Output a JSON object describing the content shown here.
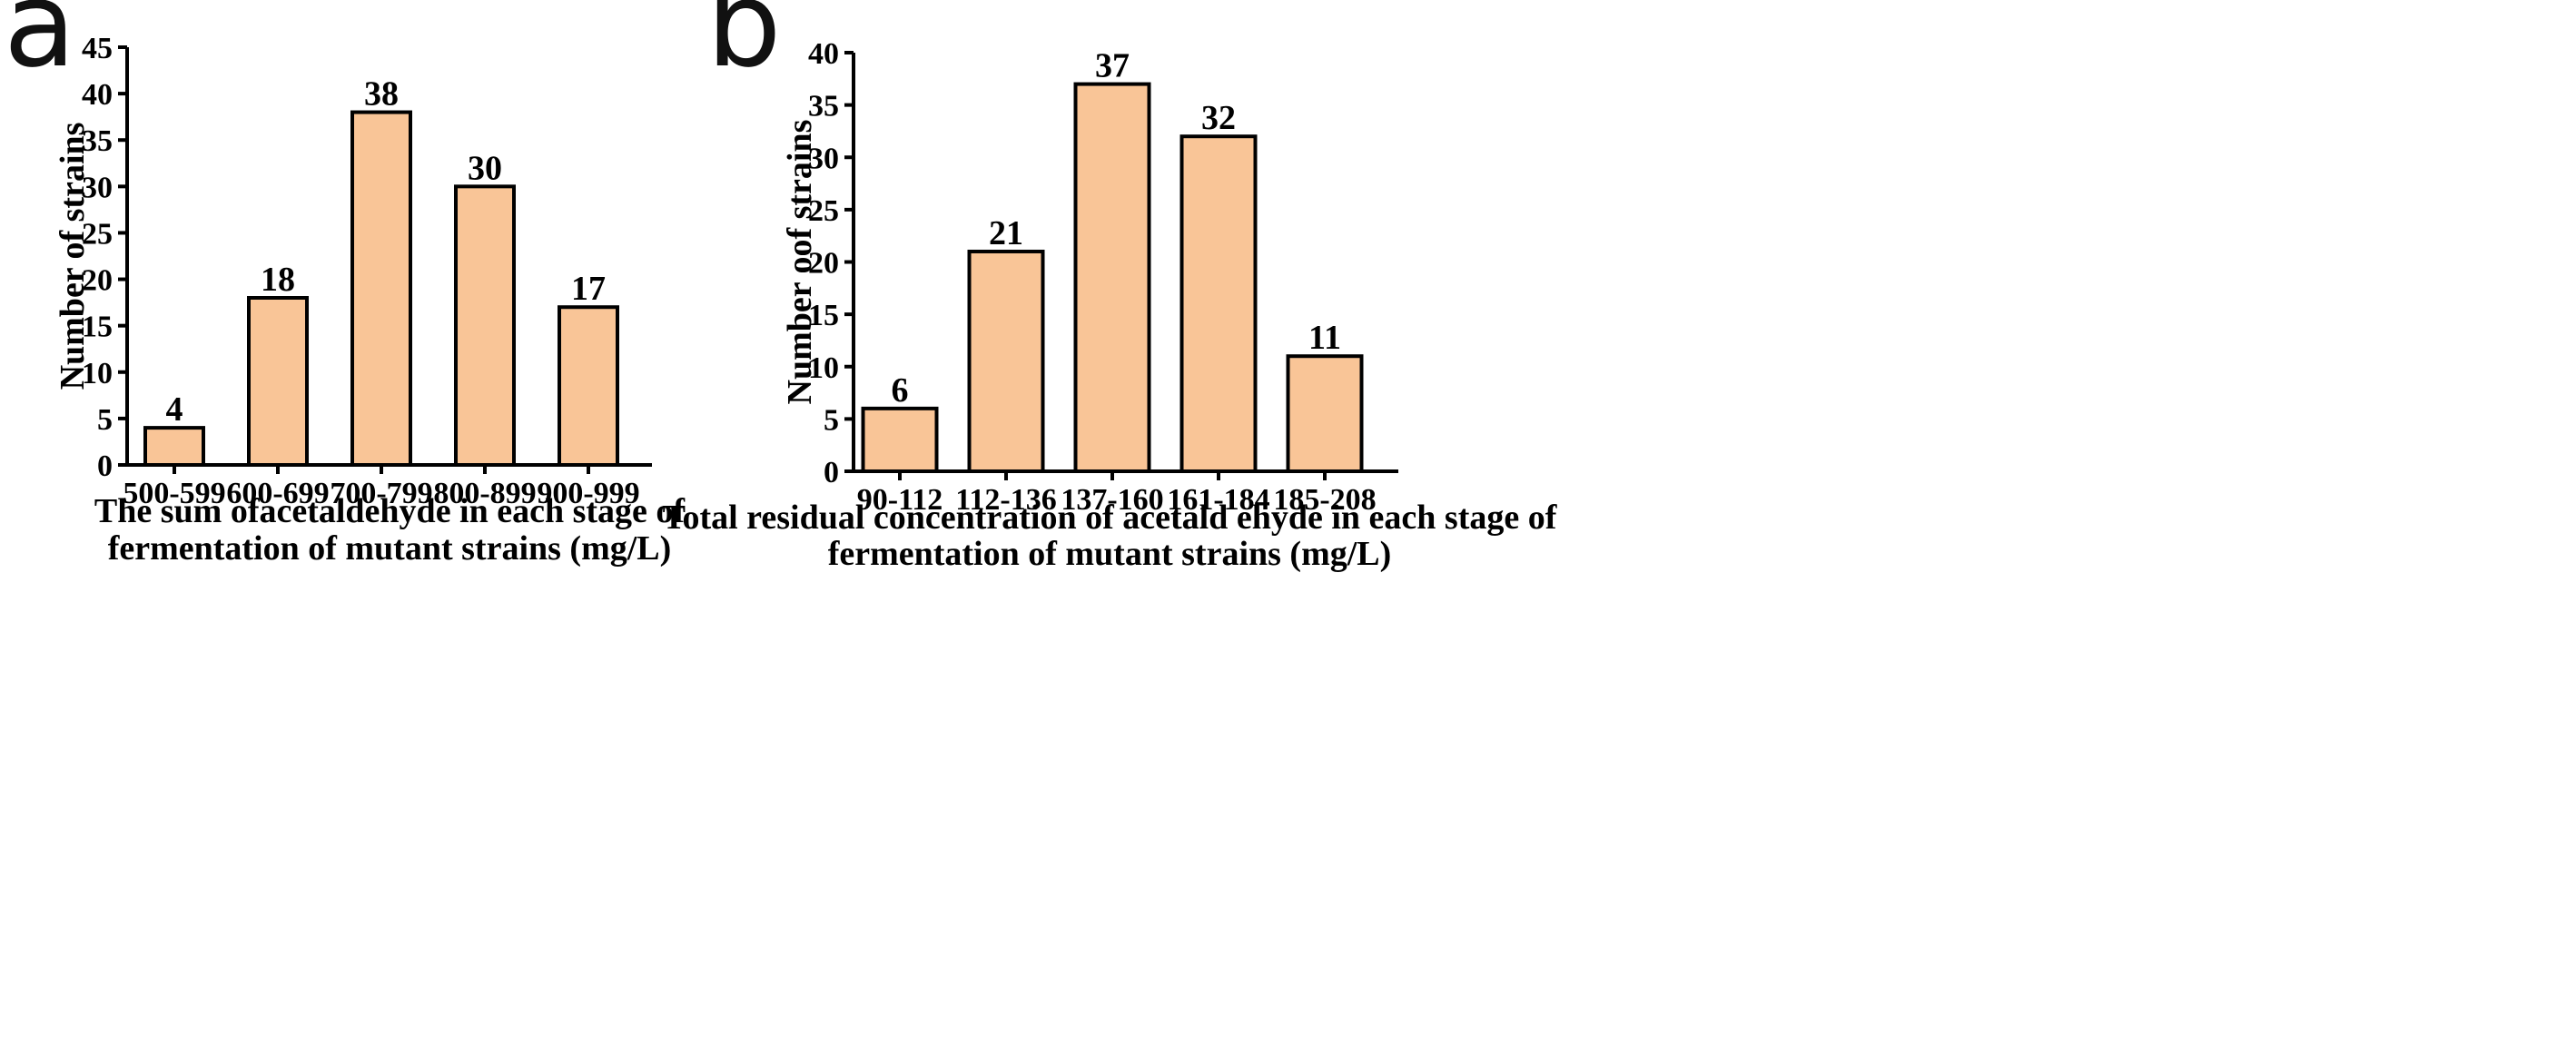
{
  "chart_data": [
    {
      "type": "bar",
      "panel_label": "a",
      "categories": [
        "500-599",
        "600-699",
        "700-799",
        "800-899",
        "900-999"
      ],
      "values": [
        4,
        18,
        38,
        30,
        17
      ],
      "data_labels": [
        "4",
        "18",
        "38",
        "30",
        "17"
      ],
      "ylabel": "Number of strains",
      "xlabel": [
        "The sum ofacetaldehyde in each stage of",
        "fermentation of mutant strains (mg/L)"
      ],
      "ylim": [
        0,
        45
      ],
      "yticks": [
        "0",
        "5",
        "10",
        "15",
        "20",
        "25",
        "30",
        "35",
        "40",
        "45"
      ],
      "bar_color": "#f9c597",
      "grid": false
    },
    {
      "type": "bar",
      "panel_label": "b",
      "categories": [
        "90-112",
        "112-136",
        "137-160",
        "161-184",
        "185-208"
      ],
      "values": [
        6,
        21,
        37,
        32,
        11
      ],
      "data_labels": [
        "6",
        "21",
        "37",
        "32",
        "11"
      ],
      "ylabel": "Number oof strains",
      "xlabel": [
        "Total residual concentration of acetald ehyde in each stage of",
        "fermentation of mutant strains (mg/L)"
      ],
      "ylim": [
        0,
        40
      ],
      "yticks": [
        "0",
        "5",
        "10",
        "15",
        "20",
        "25",
        "30",
        "35",
        "40"
      ],
      "bar_color": "#f9c597",
      "grid": false
    }
  ]
}
